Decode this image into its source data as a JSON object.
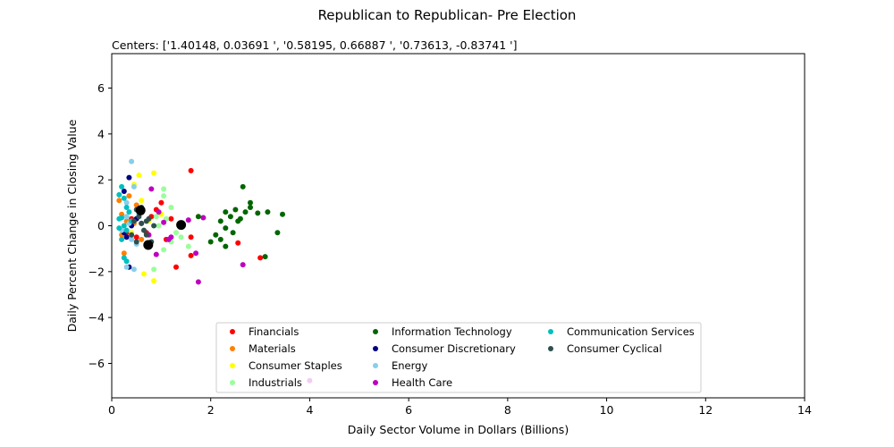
{
  "chart_data": {
    "type": "scatter",
    "title": "Republican to Republican- Pre Election",
    "subtitle": "Centers: ['1.40148, 0.03691 ', '0.58195, 0.66887 ', '0.73613, -0.83741 ']",
    "xlabel": "Daily Sector Volume in Dollars (Billions)",
    "ylabel": "Daily Percent Change in Closing Value",
    "xlim": [
      0,
      14
    ],
    "ylim": [
      -7.5,
      7.5
    ],
    "xticks": [
      0,
      2,
      4,
      6,
      8,
      10,
      12,
      14
    ],
    "yticks": [
      -6,
      -4,
      -2,
      0,
      2,
      4,
      6
    ],
    "ytick_labels": [
      "−6",
      "−4",
      "−2",
      "0",
      "2",
      "4",
      "6"
    ],
    "grid": false,
    "legend_position": "lower-center",
    "series": [
      {
        "name": "Financials",
        "color": "#ff0000",
        "points": [
          [
            1.6,
            2.4
          ],
          [
            0.9,
            0.7
          ],
          [
            1.0,
            1.0
          ],
          [
            0.6,
            0.1
          ],
          [
            0.5,
            -0.5
          ],
          [
            1.1,
            -0.6
          ],
          [
            1.6,
            -0.5
          ],
          [
            1.3,
            -1.8
          ],
          [
            1.6,
            -1.3
          ],
          [
            2.55,
            -0.75
          ],
          [
            3.0,
            -1.4
          ],
          [
            0.7,
            -0.3
          ],
          [
            0.4,
            0.3
          ],
          [
            0.3,
            -0.3
          ],
          [
            0.8,
            0.4
          ],
          [
            1.2,
            0.3
          ]
        ]
      },
      {
        "name": "Materials",
        "color": "#ff8000",
        "points": [
          [
            0.15,
            1.1
          ],
          [
            0.3,
            0.2
          ],
          [
            0.2,
            -0.4
          ],
          [
            0.25,
            -1.2
          ],
          [
            0.5,
            0.9
          ],
          [
            0.35,
            1.3
          ],
          [
            0.6,
            -0.6
          ],
          [
            0.45,
            0.1
          ],
          [
            0.2,
            0.5
          ]
        ]
      },
      {
        "name": "Consumer Staples",
        "color": "#ffff00",
        "points": [
          [
            0.85,
            2.3
          ],
          [
            0.55,
            2.2
          ],
          [
            0.45,
            1.8
          ],
          [
            0.6,
            1.1
          ],
          [
            0.7,
            -0.8
          ],
          [
            0.65,
            -2.1
          ],
          [
            0.85,
            -2.4
          ],
          [
            1.0,
            0.5
          ],
          [
            0.4,
            -0.3
          ],
          [
            0.75,
            0.2
          ]
        ]
      },
      {
        "name": "Industrials",
        "color": "#99ff99",
        "points": [
          [
            1.05,
            1.6
          ],
          [
            1.05,
            1.3
          ],
          [
            1.2,
            0.8
          ],
          [
            1.1,
            0.3
          ],
          [
            1.4,
            -0.5
          ],
          [
            1.55,
            -0.9
          ],
          [
            1.2,
            -0.7
          ],
          [
            1.05,
            -1.05
          ],
          [
            0.85,
            -1.9
          ],
          [
            0.95,
            0.0
          ],
          [
            1.3,
            -0.3
          ],
          [
            0.9,
            0.4
          ]
        ]
      },
      {
        "name": "Information Technology",
        "color": "#006600",
        "points": [
          [
            2.3,
            0.6
          ],
          [
            2.5,
            0.7
          ],
          [
            2.6,
            0.3
          ],
          [
            2.8,
            0.8
          ],
          [
            2.95,
            0.55
          ],
          [
            3.15,
            0.6
          ],
          [
            3.45,
            0.5
          ],
          [
            2.1,
            -0.4
          ],
          [
            2.2,
            -0.6
          ],
          [
            2.3,
            -0.9
          ],
          [
            2.45,
            -0.3
          ],
          [
            2.65,
            1.7
          ],
          [
            2.8,
            1.0
          ],
          [
            2.4,
            0.4
          ],
          [
            3.1,
            -1.35
          ],
          [
            3.35,
            -0.3
          ],
          [
            2.0,
            -0.7
          ],
          [
            1.75,
            0.4
          ],
          [
            2.3,
            -0.1
          ],
          [
            2.55,
            0.2
          ],
          [
            2.7,
            0.6
          ],
          [
            2.2,
            0.2
          ]
        ]
      },
      {
        "name": "Consumer Discretionary",
        "color": "#000080",
        "points": [
          [
            0.35,
            2.1
          ],
          [
            0.25,
            1.5
          ],
          [
            0.3,
            -0.5
          ],
          [
            0.25,
            -0.3
          ],
          [
            0.35,
            -1.8
          ],
          [
            0.5,
            0.3
          ],
          [
            0.4,
            0.0
          ]
        ]
      },
      {
        "name": "Energy",
        "color": "#87ceeb",
        "points": [
          [
            0.4,
            2.8
          ],
          [
            0.45,
            1.7
          ],
          [
            0.3,
            1.0
          ],
          [
            0.3,
            0.4
          ],
          [
            0.2,
            -0.2
          ],
          [
            0.3,
            -1.8
          ],
          [
            0.45,
            -1.9
          ],
          [
            0.4,
            -0.6
          ],
          [
            0.35,
            0.1
          ],
          [
            0.5,
            -0.8
          ],
          [
            0.55,
            0.5
          ]
        ]
      },
      {
        "name": "Health Care",
        "color": "#bf00bf",
        "points": [
          [
            0.8,
            1.6
          ],
          [
            1.55,
            0.25
          ],
          [
            1.85,
            0.35
          ],
          [
            1.15,
            -0.6
          ],
          [
            1.7,
            -1.2
          ],
          [
            1.75,
            -2.45
          ],
          [
            2.65,
            -1.7
          ],
          [
            4.0,
            -6.75
          ],
          [
            0.9,
            -1.25
          ],
          [
            1.05,
            0.15
          ],
          [
            1.2,
            -0.5
          ],
          [
            0.75,
            -0.4
          ],
          [
            0.95,
            0.6
          ],
          [
            0.6,
            0.6
          ]
        ]
      },
      {
        "name": "Communication Services",
        "color": "#00bfbf",
        "points": [
          [
            0.15,
            1.35
          ],
          [
            0.2,
            1.7
          ],
          [
            0.25,
            1.2
          ],
          [
            0.3,
            0.8
          ],
          [
            0.15,
            0.3
          ],
          [
            0.25,
            0.0
          ],
          [
            0.2,
            -0.6
          ],
          [
            0.25,
            -1.4
          ],
          [
            0.3,
            -1.55
          ],
          [
            0.35,
            0.6
          ],
          [
            0.4,
            0.2
          ],
          [
            0.2,
            0.35
          ],
          [
            0.3,
            -0.2
          ],
          [
            0.15,
            -0.1
          ]
        ]
      },
      {
        "name": "Consumer Cyclical",
        "color": "#2f4f4f",
        "points": [
          [
            0.5,
            0.7
          ],
          [
            0.55,
            0.4
          ],
          [
            0.6,
            0.1
          ],
          [
            0.65,
            -0.2
          ],
          [
            0.7,
            -0.4
          ],
          [
            0.75,
            0.3
          ],
          [
            0.85,
            0.0
          ],
          [
            0.4,
            -0.4
          ],
          [
            0.5,
            -0.7
          ],
          [
            0.6,
            0.8
          ],
          [
            0.45,
            0.2
          ],
          [
            0.8,
            -0.7
          ],
          [
            0.7,
            0.2
          ]
        ]
      }
    ],
    "centers": {
      "color": "#000000",
      "points": [
        [
          1.40148,
          0.03691
        ],
        [
          0.58195,
          0.66887
        ],
        [
          0.73613,
          -0.83741
        ]
      ]
    }
  }
}
